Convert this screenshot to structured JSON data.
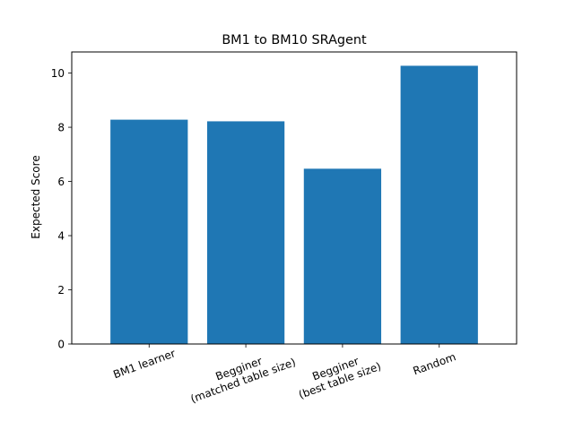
{
  "chart_data": {
    "type": "bar",
    "title": "BM1 to BM10 SRAgent",
    "xlabel": "",
    "ylabel": "Expected Score",
    "categories": [
      [
        "BM1 learner"
      ],
      [
        "Begginer",
        "(matched table size)"
      ],
      [
        "Begginer",
        "(best table size)"
      ],
      [
        "Random"
      ]
    ],
    "values": [
      8.28,
      8.22,
      6.47,
      10.27
    ],
    "ylim": [
      0,
      10.78
    ],
    "yticks": [
      0,
      2,
      4,
      6,
      8,
      10
    ],
    "tick_label_rotation_deg": -20,
    "bar_color": "#1f77b4",
    "grid": false,
    "legend": false
  }
}
